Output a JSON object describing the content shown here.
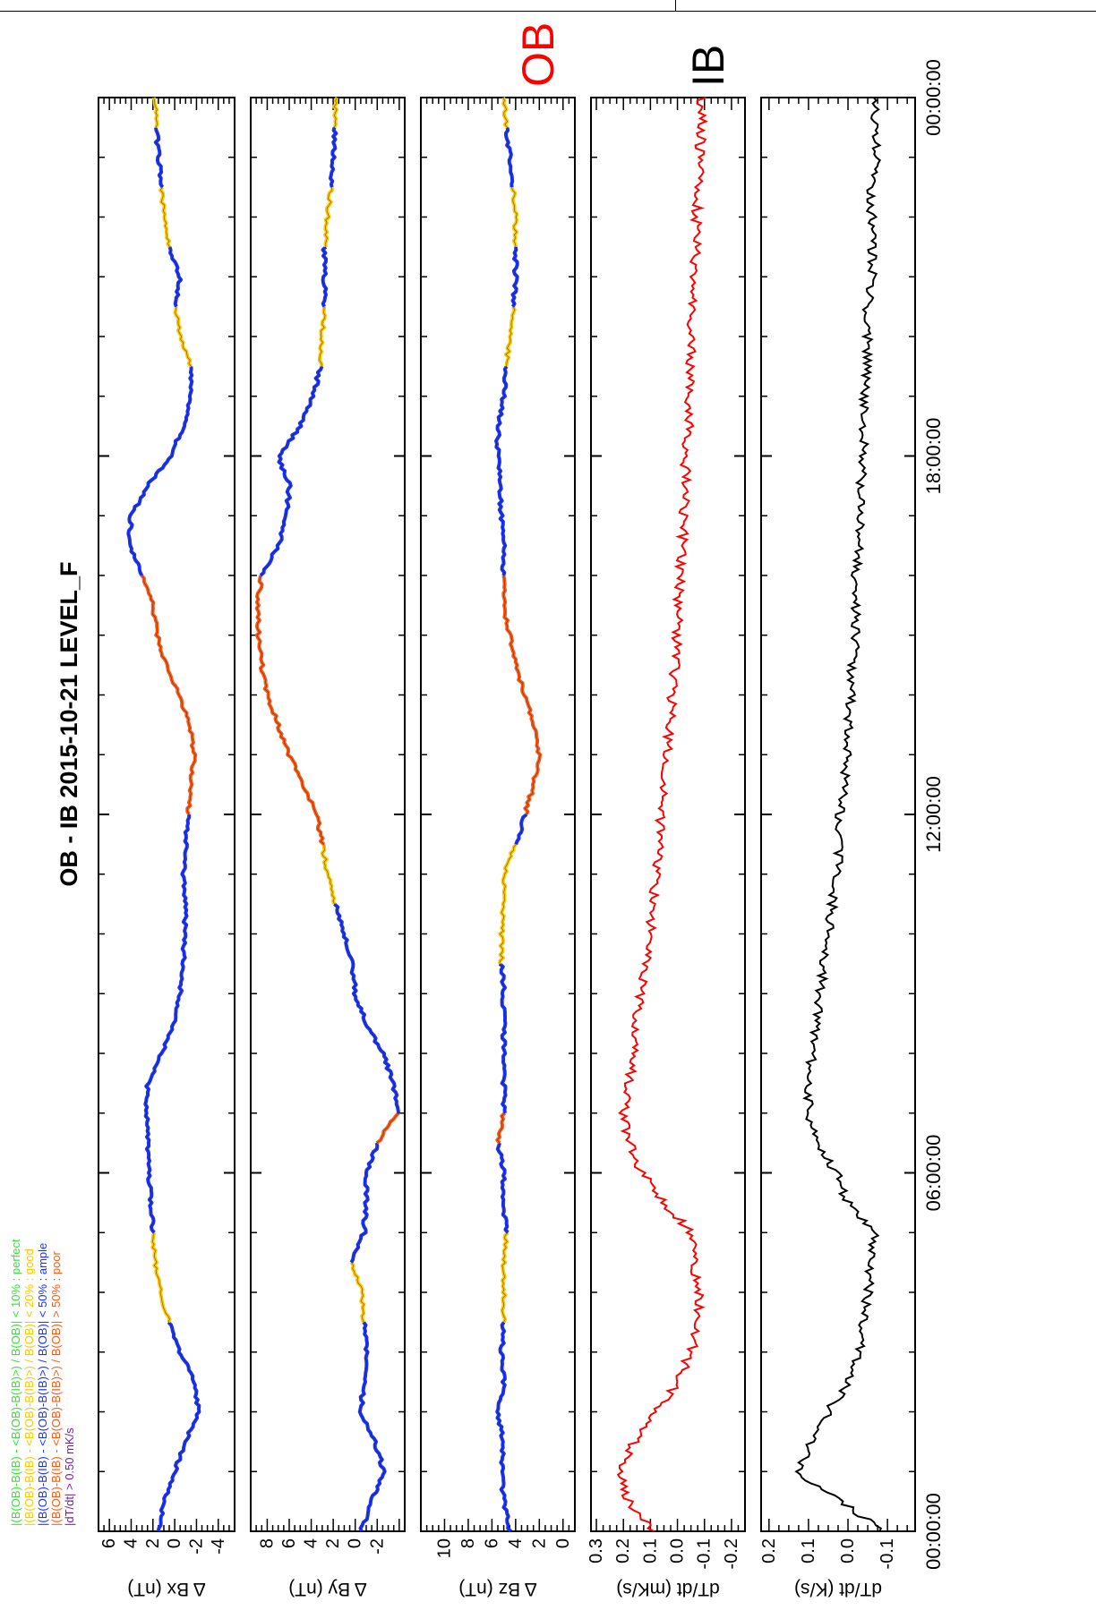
{
  "title": "OB - IB  2015-10-21 LEVEL_F",
  "colors": {
    "perfect": "#33e533",
    "good": "#ffc800",
    "ample": "#1a33ff",
    "poor": "#ff5a14",
    "dtdt_flag": "#7a1ea0",
    "ob_trace": "#ff0000",
    "ib_trace": "#000000"
  },
  "legend": [
    {
      "text": "|(B(OB)-B(IB) - <B(OB)-B(IB)>) / B(OB)| < 10% : perfect",
      "color_key": "perfect"
    },
    {
      "text": "|(B(OB)-B(IB) - <B(OB)-B(IB)>) / B(OB)| < 20% : good",
      "color_key": "good"
    },
    {
      "text": "|(B(OB)-B(IB) - <B(OB)-B(IB)>) / B(OB)| < 50% : ample",
      "color_key": "ample"
    },
    {
      "text": "|(B(OB)-B(IB) - <B(OB)-B(IB)>) / B(OB)| > 50% : poor",
      "color_key": "poor"
    },
    {
      "text": "|dT/dt|          > 0.50 mK/s",
      "color_key": "dtdt_flag"
    }
  ],
  "time_axis": {
    "range_hours": [
      0,
      24
    ],
    "tick_labels": [
      "00:00:00",
      "06:00:00",
      "12:00:00",
      "18:00:00",
      "00:00:00"
    ]
  },
  "panel_labels": {
    "ob": "OB",
    "ib": "IB"
  },
  "chart_data": [
    {
      "type": "line",
      "name": "dBx",
      "ylabel": "Δ   Bx (nT)",
      "ylim": [
        -5.5,
        7
      ],
      "yticks": [
        "6",
        "4",
        "2",
        "0",
        "-2",
        "-4"
      ],
      "ytick_values": [
        6,
        4,
        2,
        0,
        -2,
        -4
      ],
      "x": [
        0,
        0.5,
        1,
        1.5,
        2,
        2.5,
        3,
        3.5,
        4,
        4.5,
        5,
        5.5,
        6,
        6.5,
        7,
        7.5,
        8,
        8.5,
        9,
        9.5,
        10,
        10.5,
        11,
        11.5,
        12,
        12.5,
        13,
        13.5,
        14,
        14.5,
        15,
        15.5,
        16,
        16.5,
        17,
        17.5,
        18,
        18.5,
        19,
        19.5,
        20,
        20.5,
        21,
        21.5,
        22,
        22.5,
        23,
        23.5,
        24
      ],
      "values": [
        1.5,
        1.0,
        0.0,
        -1.0,
        -2.2,
        -1.8,
        -0.5,
        0.5,
        1.3,
        1.8,
        2.0,
        2.2,
        2.4,
        2.5,
        2.6,
        2.5,
        1.2,
        0.0,
        -0.5,
        -0.8,
        -0.9,
        -1.0,
        -0.8,
        -1.0,
        -1.2,
        -1.5,
        -1.8,
        -1.4,
        -0.4,
        0.8,
        1.6,
        2.0,
        3.0,
        4.2,
        4.0,
        2.5,
        0.4,
        -0.8,
        -1.5,
        -1.5,
        -0.5,
        0.0,
        -0.5,
        0.5,
        1.0,
        1.2,
        1.5,
        1.7,
        1.8
      ],
      "quality": [
        "ample",
        "ample",
        "ample",
        "ample",
        "ample",
        "ample",
        "ample",
        "good",
        "good",
        "good",
        "ample",
        "ample",
        "ample",
        "ample",
        "ample",
        "ample",
        "ample",
        "ample",
        "ample",
        "ample",
        "ample",
        "ample",
        "ample",
        "ample",
        "poor",
        "poor",
        "poor",
        "poor",
        "poor",
        "poor",
        "poor",
        "poor",
        "ample",
        "ample",
        "ample",
        "ample",
        "ample",
        "ample",
        "ample",
        "good",
        "good",
        "ample",
        "ample",
        "good",
        "good",
        "ample",
        "ample",
        "good",
        "good"
      ]
    },
    {
      "type": "line",
      "name": "dBy",
      "ylabel": "Δ   By (nT)",
      "ylim": [
        -4.5,
        9.5
      ],
      "yticks": [
        "8",
        "6",
        "4",
        "2",
        "0",
        "-2"
      ],
      "ytick_values": [
        8,
        6,
        4,
        2,
        0,
        -2
      ],
      "x": [
        0,
        0.5,
        1,
        1.5,
        2,
        2.5,
        3,
        3.5,
        4,
        4.5,
        5,
        5.5,
        6,
        6.5,
        7,
        7.5,
        8,
        8.5,
        9,
        9.5,
        10,
        10.5,
        11,
        11.5,
        12,
        12.5,
        13,
        13.5,
        14,
        14.5,
        15,
        15.5,
        16,
        16.5,
        17,
        17.5,
        18,
        18.5,
        19,
        19.5,
        20,
        20.5,
        21,
        21.5,
        22,
        22.5,
        23,
        23.5,
        24
      ],
      "values": [
        -0.5,
        -1.5,
        -2.6,
        -1.8,
        -0.5,
        -0.8,
        -1.0,
        -0.8,
        -0.6,
        0.3,
        -0.8,
        -1.0,
        -1.0,
        -2.0,
        -3.8,
        -3.5,
        -2.5,
        -1.0,
        0.0,
        0.3,
        1.0,
        1.8,
        2.5,
        3.0,
        3.5,
        4.8,
        6.0,
        7.0,
        8.0,
        8.5,
        8.8,
        8.9,
        8.5,
        7.0,
        6.2,
        6.0,
        7.0,
        5.0,
        3.8,
        3.2,
        3.0,
        2.8,
        2.8,
        2.8,
        2.5,
        2.2,
        2.0,
        1.8,
        1.8
      ],
      "quality": [
        "ample",
        "ample",
        "ample",
        "ample",
        "ample",
        "ample",
        "ample",
        "good",
        "good",
        "ample",
        "ample",
        "ample",
        "ample",
        "poor",
        "ample",
        "ample",
        "ample",
        "ample",
        "ample",
        "ample",
        "ample",
        "good",
        "good",
        "poor",
        "poor",
        "poor",
        "poor",
        "poor",
        "poor",
        "poor",
        "poor",
        "poor",
        "ample",
        "ample",
        "ample",
        "ample",
        "ample",
        "ample",
        "ample",
        "good",
        "good",
        "ample",
        "ample",
        "good",
        "good",
        "ample",
        "ample",
        "good",
        "good"
      ]
    },
    {
      "type": "line",
      "name": "dBz",
      "ylabel": "Δ   Bz (nT)",
      "ylim": [
        -1,
        12
      ],
      "yticks": [
        "10",
        "8",
        "6",
        "4",
        "2",
        "0"
      ],
      "ytick_values": [
        10,
        8,
        6,
        4,
        2,
        0
      ],
      "x": [
        0,
        0.5,
        1,
        1.5,
        2,
        2.5,
        3,
        3.5,
        4,
        4.5,
        5,
        5.5,
        6,
        6.5,
        7,
        7.5,
        8,
        8.5,
        9,
        9.5,
        10,
        10.5,
        11,
        11.5,
        12,
        12.5,
        13,
        13.5,
        14,
        14.5,
        15,
        15.5,
        16,
        16.5,
        17,
        17.5,
        18,
        18.5,
        19,
        19.5,
        20,
        20.5,
        21,
        21.5,
        22,
        22.5,
        23,
        23.5,
        24
      ],
      "values": [
        4.5,
        5.0,
        5.2,
        5.0,
        5.5,
        5.0,
        5.2,
        5.0,
        5.0,
        5.0,
        4.8,
        5.0,
        5.0,
        5.5,
        5.0,
        5.0,
        5.0,
        5.0,
        5.0,
        5.2,
        5.2,
        5.0,
        5.0,
        4.0,
        3.2,
        2.5,
        2.0,
        2.5,
        3.2,
        4.0,
        4.5,
        5.0,
        5.0,
        5.0,
        5.2,
        5.3,
        5.5,
        5.5,
        5.0,
        4.8,
        4.5,
        4.2,
        4.0,
        4.0,
        4.0,
        4.2,
        4.5,
        4.8,
        5.0
      ],
      "quality": [
        "ample",
        "ample",
        "ample",
        "ample",
        "ample",
        "ample",
        "ample",
        "good",
        "good",
        "good",
        "ample",
        "ample",
        "ample",
        "poor",
        "ample",
        "ample",
        "ample",
        "ample",
        "ample",
        "good",
        "good",
        "good",
        "good",
        "ample",
        "poor",
        "poor",
        "poor",
        "poor",
        "poor",
        "poor",
        "poor",
        "poor",
        "ample",
        "ample",
        "ample",
        "ample",
        "ample",
        "ample",
        "ample",
        "good",
        "good",
        "ample",
        "ample",
        "good",
        "good",
        "ample",
        "ample",
        "good",
        "good"
      ]
    },
    {
      "type": "line",
      "name": "OB",
      "ylabel": "dT/dt (mK/s)",
      "ylim": [
        -0.25,
        0.32
      ],
      "yticks": [
        "0.3",
        "0.2",
        "0.1",
        "0.0",
        "-0.1",
        "-0.2"
      ],
      "ytick_values": [
        0.3,
        0.2,
        0.1,
        0.0,
        -0.1,
        -0.2
      ],
      "x": [
        0,
        0.5,
        1,
        1.5,
        2,
        2.5,
        3,
        3.5,
        4,
        4.5,
        5,
        5.5,
        6,
        6.5,
        7,
        7.5,
        8,
        8.5,
        9,
        9.5,
        10,
        10.5,
        11,
        11.5,
        12,
        12.5,
        13,
        13.5,
        14,
        14.5,
        15,
        15.5,
        16,
        16.5,
        17,
        17.5,
        18,
        18.5,
        19,
        19.5,
        20,
        20.5,
        21,
        21.5,
        22,
        22.5,
        23,
        23.5,
        24
      ],
      "values": [
        0.09,
        0.18,
        0.22,
        0.16,
        0.08,
        0.0,
        -0.05,
        -0.08,
        -0.08,
        -0.06,
        -0.05,
        0.05,
        0.13,
        0.18,
        0.2,
        0.18,
        0.16,
        0.15,
        0.14,
        0.12,
        0.1,
        0.09,
        0.08,
        0.07,
        0.06,
        0.05,
        0.04,
        0.03,
        0.02,
        0.01,
        0.0,
        0.0,
        -0.01,
        -0.02,
        -0.02,
        -0.03,
        -0.03,
        -0.04,
        -0.04,
        -0.05,
        -0.05,
        -0.06,
        -0.06,
        -0.07,
        -0.07,
        -0.08,
        -0.08,
        -0.09,
        -0.09
      ],
      "noise": 0.018
    },
    {
      "type": "line",
      "name": "IB",
      "ylabel": "dT/dt (K/s)",
      "ylim": [
        -0.17,
        0.22
      ],
      "yticks": [
        "0.2",
        "0.1",
        "0.0",
        "-0.1"
      ],
      "ytick_values": [
        0.2,
        0.1,
        0.0,
        -0.1
      ],
      "x": [
        0,
        0.5,
        1,
        1.5,
        2,
        2.5,
        3,
        3.5,
        4,
        4.5,
        5,
        5.5,
        6,
        6.5,
        7,
        7.5,
        8,
        8.5,
        9,
        9.5,
        10,
        10.5,
        11,
        11.5,
        12,
        12.5,
        13,
        13.5,
        14,
        14.5,
        15,
        15.5,
        16,
        16.5,
        17,
        17.5,
        18,
        18.5,
        19,
        19.5,
        20,
        20.5,
        21,
        21.5,
        22,
        22.5,
        23,
        23.5,
        24
      ],
      "values": [
        -0.09,
        0.02,
        0.13,
        0.09,
        0.05,
        0.0,
        -0.03,
        -0.04,
        -0.05,
        -0.06,
        -0.07,
        0.0,
        0.03,
        0.08,
        0.1,
        0.1,
        0.09,
        0.08,
        0.07,
        0.06,
        0.05,
        0.04,
        0.03,
        0.02,
        0.02,
        0.01,
        0.0,
        0.0,
        -0.01,
        -0.01,
        -0.02,
        -0.02,
        -0.02,
        -0.03,
        -0.03,
        -0.03,
        -0.04,
        -0.04,
        -0.04,
        -0.05,
        -0.05,
        -0.05,
        -0.06,
        -0.06,
        -0.06,
        -0.06,
        -0.07,
        -0.07,
        -0.07
      ],
      "noise": 0.012
    }
  ]
}
